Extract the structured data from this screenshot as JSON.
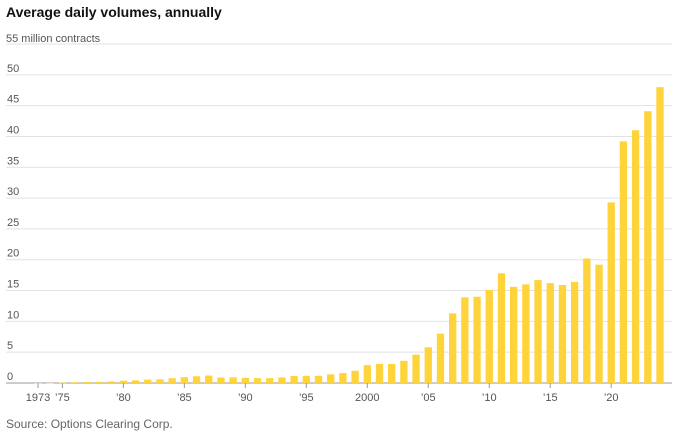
{
  "chart_data": {
    "type": "bar",
    "title": "Average daily volumes, annually",
    "unit_label": "55 million contracts",
    "source": "Source: Options Clearing Corp.",
    "color": "#FFD43B",
    "ylim": [
      0,
      55
    ],
    "yticks": [
      0,
      5,
      10,
      15,
      20,
      25,
      30,
      35,
      40,
      45,
      50
    ],
    "x_tick_years": [
      1973,
      1975,
      1980,
      1985,
      1990,
      1995,
      2000,
      2005,
      2010,
      2015,
      2020
    ],
    "x_tick_labels": [
      "1973",
      "’75",
      "’80",
      "’85",
      "’90",
      "’95",
      "2000",
      "’05",
      "’10",
      "’15",
      "’20"
    ],
    "grid": true,
    "x": [
      1973,
      1974,
      1975,
      1976,
      1977,
      1978,
      1979,
      1980,
      1981,
      1982,
      1983,
      1984,
      1985,
      1986,
      1987,
      1988,
      1989,
      1990,
      1991,
      1992,
      1993,
      1994,
      1995,
      1996,
      1997,
      1998,
      1999,
      2000,
      2001,
      2002,
      2003,
      2004,
      2005,
      2006,
      2007,
      2008,
      2009,
      2010,
      2011,
      2012,
      2013,
      2014,
      2015,
      2016,
      2017,
      2018,
      2019,
      2020,
      2021,
      2022,
      2023,
      2024
    ],
    "values": [
      0.01,
      0.02,
      0.07,
      0.13,
      0.16,
      0.19,
      0.26,
      0.38,
      0.43,
      0.55,
      0.6,
      0.77,
      0.94,
      1.1,
      1.21,
      0.9,
      0.91,
      0.83,
      0.78,
      0.79,
      0.9,
      1.14,
      1.16,
      1.17,
      1.41,
      1.61,
      1.98,
      2.9,
      3.1,
      3.1,
      3.6,
      4.6,
      5.8,
      8.0,
      11.3,
      13.9,
      14.0,
      15.1,
      17.8,
      15.6,
      16.0,
      16.7,
      16.2,
      15.9,
      16.4,
      20.2,
      19.2,
      29.3,
      39.2,
      41.0,
      44.1,
      48.0
    ]
  }
}
